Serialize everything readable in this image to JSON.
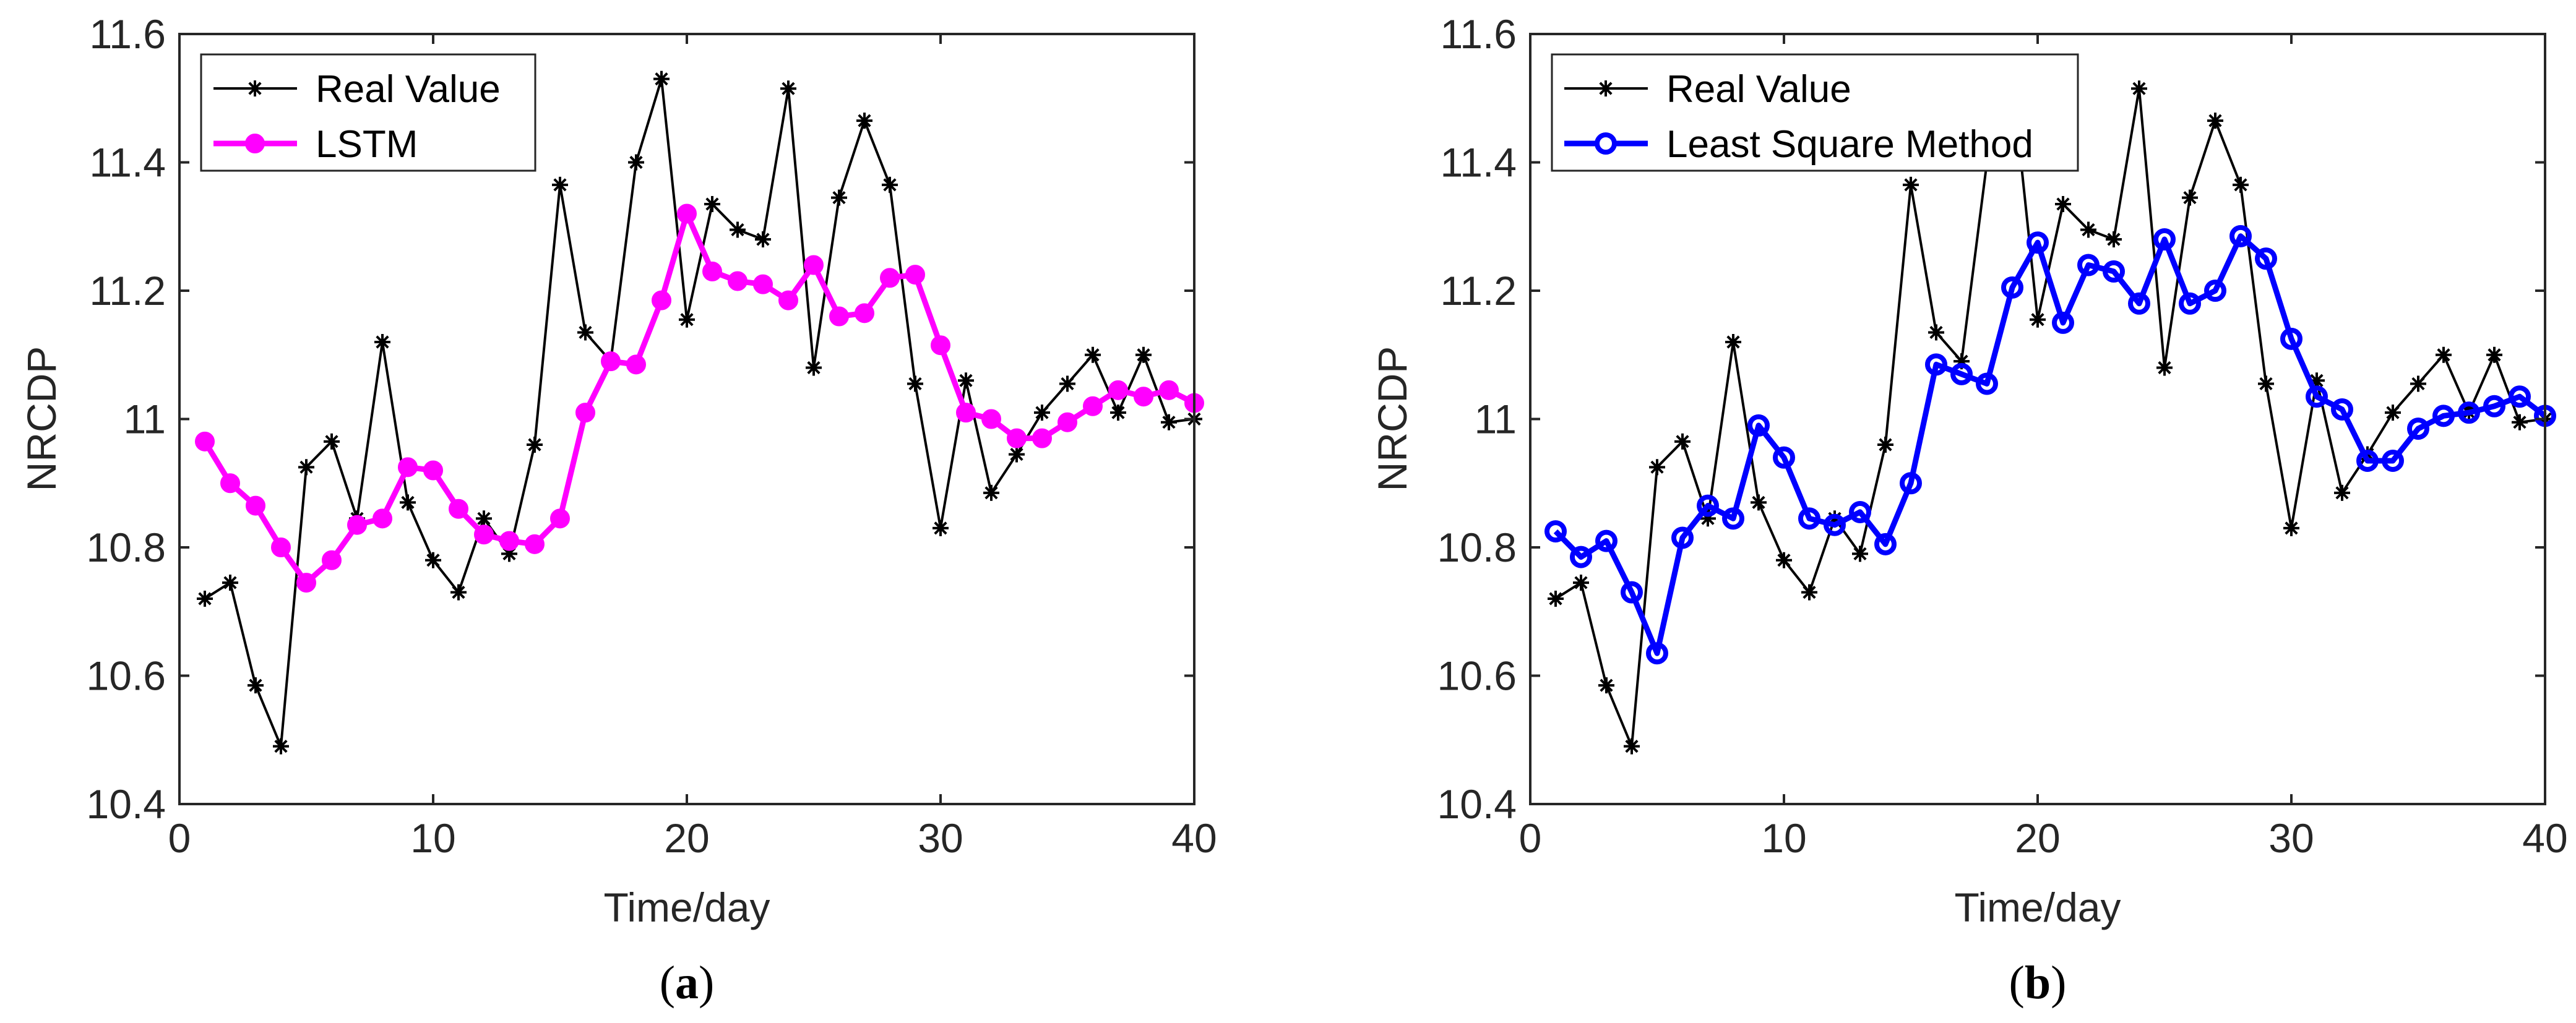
{
  "colors": {
    "real": "#000000",
    "lstm": "#ff00ff",
    "lsm": "#0000ff",
    "axis": "#262626"
  },
  "chart_data": [
    {
      "type": "line",
      "panel_label": "a",
      "xlabel": "Time/day",
      "ylabel": "NRCDP",
      "xlim": [
        0,
        40
      ],
      "ylim": [
        10.4,
        11.6
      ],
      "xticks": [
        0,
        10,
        20,
        30,
        40
      ],
      "yticks": [
        10.4,
        10.6,
        10.8,
        11.0,
        11.2,
        11.4,
        11.6
      ],
      "xtick_labels": [
        "0",
        "10",
        "20",
        "30",
        "40"
      ],
      "ytick_labels": [
        "10.4",
        "10.6",
        "10.8",
        "11",
        "11.2",
        "11.4",
        "11.6"
      ],
      "legend_location": "top-left",
      "x": [
        1,
        2,
        3,
        4,
        5,
        6,
        7,
        8,
        9,
        10,
        11,
        12,
        13,
        14,
        15,
        16,
        17,
        18,
        19,
        20,
        21,
        22,
        23,
        24,
        25,
        26,
        27,
        28,
        29,
        30,
        31,
        32,
        33,
        34,
        35,
        36,
        37,
        38,
        39,
        40
      ],
      "series": [
        {
          "name": "Real Value",
          "marker": "asterisk",
          "color_key": "real",
          "values": [
            10.72,
            10.745,
            10.585,
            10.49,
            10.925,
            10.965,
            10.845,
            11.12,
            10.87,
            10.78,
            10.73,
            10.845,
            10.79,
            10.96,
            11.365,
            11.135,
            11.09,
            11.4,
            11.53,
            11.155,
            11.335,
            11.295,
            11.28,
            11.515,
            11.08,
            11.345,
            11.465,
            11.365,
            11.055,
            10.83,
            11.06,
            10.885,
            10.945,
            11.01,
            11.055,
            11.1,
            11.01,
            11.1,
            10.995,
            11.0
          ]
        },
        {
          "name": "LSTM",
          "marker": "filled-circle",
          "color_key": "lstm",
          "values": [
            10.965,
            10.9,
            10.865,
            10.8,
            10.745,
            10.78,
            10.835,
            10.845,
            10.925,
            10.92,
            10.86,
            10.82,
            10.81,
            10.805,
            10.845,
            11.01,
            11.09,
            11.085,
            11.185,
            11.32,
            11.23,
            11.215,
            11.21,
            11.185,
            11.24,
            11.16,
            11.165,
            11.22,
            11.225,
            11.115,
            11.01,
            11.0,
            10.97,
            10.97,
            10.995,
            11.02,
            11.045,
            11.035,
            11.045,
            11.025
          ]
        }
      ]
    },
    {
      "type": "line",
      "panel_label": "b",
      "xlabel": "Time/day",
      "ylabel": "NRCDP",
      "xlim": [
        0,
        40
      ],
      "ylim": [
        10.4,
        11.6
      ],
      "xticks": [
        0,
        10,
        20,
        30,
        40
      ],
      "yticks": [
        10.4,
        10.6,
        10.8,
        11.0,
        11.2,
        11.4,
        11.6
      ],
      "xtick_labels": [
        "0",
        "10",
        "20",
        "30",
        "40"
      ],
      "ytick_labels": [
        "10.4",
        "10.6",
        "10.8",
        "11",
        "11.2",
        "11.4",
        "11.6"
      ],
      "legend_location": "top-left",
      "x": [
        1,
        2,
        3,
        4,
        5,
        6,
        7,
        8,
        9,
        10,
        11,
        12,
        13,
        14,
        15,
        16,
        17,
        18,
        19,
        20,
        21,
        22,
        23,
        24,
        25,
        26,
        27,
        28,
        29,
        30,
        31,
        32,
        33,
        34,
        35,
        36,
        37,
        38,
        39,
        40
      ],
      "series": [
        {
          "name": "Real Value",
          "marker": "asterisk",
          "color_key": "real",
          "values": [
            10.72,
            10.745,
            10.585,
            10.49,
            10.925,
            10.965,
            10.845,
            11.12,
            10.87,
            10.78,
            10.73,
            10.845,
            10.79,
            10.96,
            11.365,
            11.135,
            11.09,
            11.4,
            11.53,
            11.155,
            11.335,
            11.295,
            11.28,
            11.515,
            11.08,
            11.345,
            11.465,
            11.365,
            11.055,
            10.83,
            11.06,
            10.885,
            10.945,
            11.01,
            11.055,
            11.1,
            11.01,
            11.1,
            10.995,
            11.0
          ]
        },
        {
          "name": "Least Square Method",
          "marker": "open-circle",
          "color_key": "lsm",
          "values": [
            10.825,
            10.785,
            10.81,
            10.73,
            10.635,
            10.815,
            10.865,
            10.845,
            10.99,
            10.94,
            10.845,
            10.835,
            10.855,
            10.805,
            10.9,
            11.085,
            11.07,
            11.055,
            11.205,
            11.275,
            11.15,
            11.24,
            11.23,
            11.18,
            11.28,
            11.18,
            11.2,
            11.285,
            11.25,
            11.125,
            11.035,
            11.015,
            10.935,
            10.935,
            10.985,
            11.005,
            11.01,
            11.02,
            11.035,
            11.005
          ]
        }
      ]
    }
  ]
}
